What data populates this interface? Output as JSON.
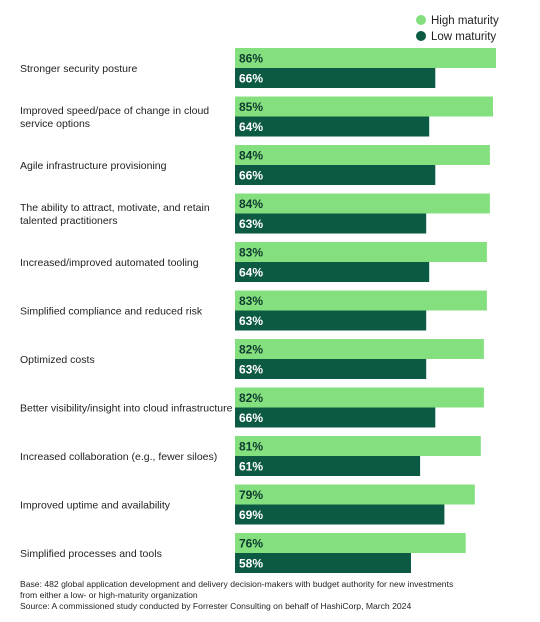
{
  "chart_data": {
    "type": "bar",
    "orientation": "horizontal",
    "categories": [
      [
        "Stronger security posture"
      ],
      [
        "Improved speed/pace of change in cloud",
        "service options"
      ],
      [
        "Agile infrastructure provisioning"
      ],
      [
        "The ability to attract, motivate, and retain",
        "talented practitioners"
      ],
      [
        "Increased/improved automated tooling"
      ],
      [
        "Simplified compliance and reduced risk"
      ],
      [
        "Optimized costs"
      ],
      [
        "Better visibility/insight into cloud infrastructure"
      ],
      [
        "Increased collaboration (e.g., fewer siloes)"
      ],
      [
        "Improved uptime and availability"
      ],
      [
        "Simplified processes and tools"
      ]
    ],
    "series": [
      {
        "name": "High maturity",
        "color": "#84e07e",
        "text_color": "#0e3b2e",
        "values": [
          86,
          85,
          84,
          84,
          83,
          83,
          82,
          82,
          81,
          79,
          76
        ]
      },
      {
        "name": "Low maturity",
        "color": "#0c5a44",
        "text_color": "#ffffff",
        "values": [
          66,
          64,
          66,
          63,
          64,
          63,
          63,
          66,
          61,
          69,
          58
        ]
      }
    ],
    "value_suffix": "%",
    "xlim": [
      0,
      86
    ],
    "grid": false,
    "legend": "top-right"
  },
  "footnote": {
    "line1": "Base: 482 global application development and delivery decision-makers with budget authority for new investments",
    "line2": "from either a low- or high-maturity organization",
    "line3": "Source: A commissioned study conducted by Forrester Consulting on behalf of HashiCorp, March 2024"
  }
}
